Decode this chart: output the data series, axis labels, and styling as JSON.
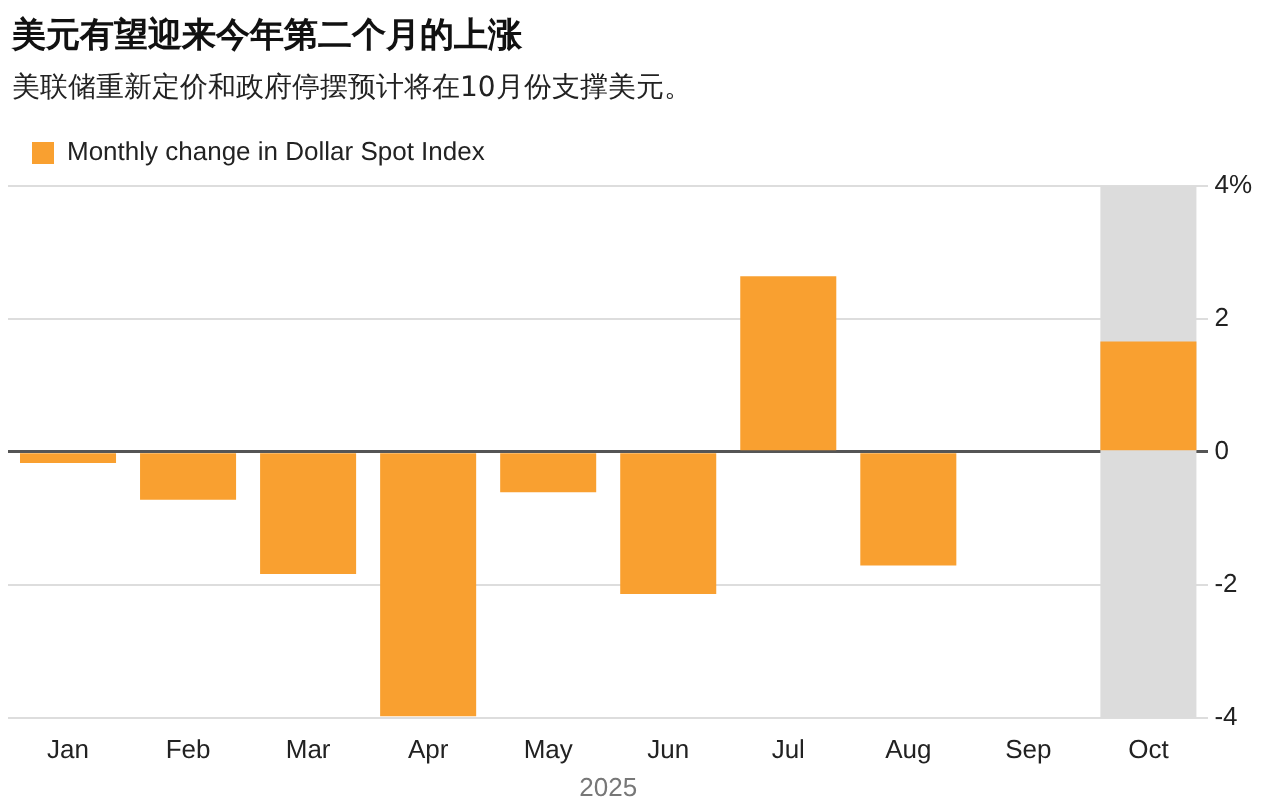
{
  "chart_data": {
    "type": "bar",
    "title": "美元有望迎来今年第二个月的上涨",
    "subtitle": "美联储重新定价和政府停摆预计将在10月份支撑美元。",
    "xlabel": "2025",
    "categories": [
      "Jan",
      "Feb",
      "Mar",
      "Apr",
      "May",
      "Jun",
      "Jul",
      "Aug",
      "Sep",
      "Oct"
    ],
    "series": [
      {
        "name": "Monthly change in Dollar Spot Index",
        "color": "#f9a030",
        "values": [
          -0.17,
          -0.72,
          -1.84,
          -3.98,
          -0.61,
          -2.14,
          2.64,
          -1.71,
          null,
          1.66
        ]
      }
    ],
    "ylim": [
      -4,
      4
    ],
    "yticks": [
      {
        "value": -4,
        "label": "-4"
      },
      {
        "value": -2,
        "label": "-2"
      },
      {
        "value": 0,
        "label": "0"
      },
      {
        "value": 2,
        "label": "2"
      },
      {
        "value": 4,
        "label": "4%"
      }
    ],
    "bands": [
      {
        "axis": "x",
        "from": "Oct",
        "to": "Oct",
        "color": "#dcdcdc"
      }
    ],
    "grid": "y",
    "legend": "top left"
  }
}
